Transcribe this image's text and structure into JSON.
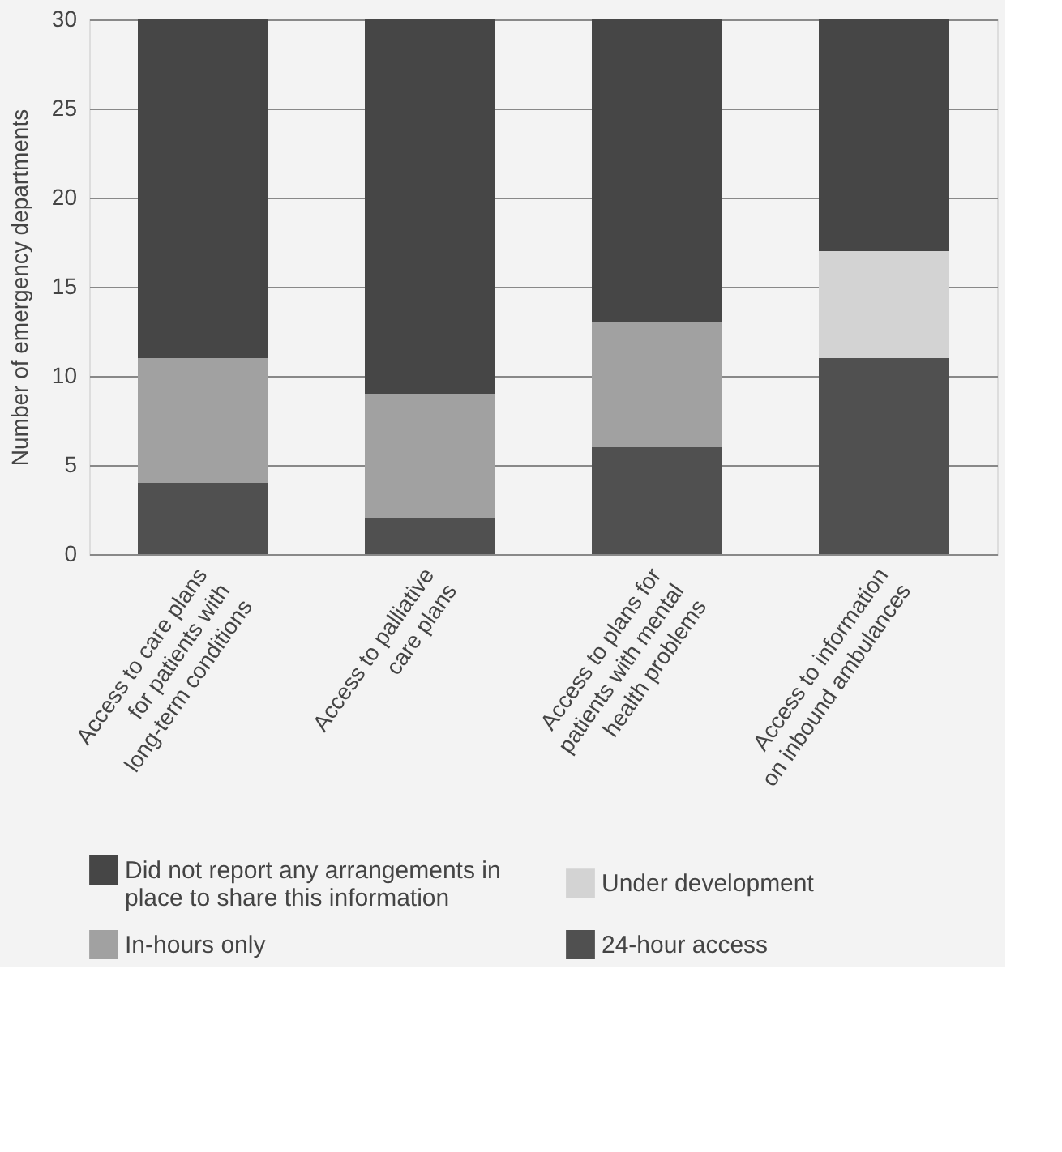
{
  "chart_data": {
    "type": "bar",
    "stacked": true,
    "ylabel": "Number of emergency departments",
    "categories": [
      "Access to care plans for patients with long-term conditions",
      "Access to palliative care plans",
      "Access to plans for patients with mental health problems",
      "Access to information on inbound ambulances"
    ],
    "series": [
      {
        "name": "24-hour access",
        "color": "#505050",
        "values": [
          4,
          2,
          6,
          11
        ]
      },
      {
        "name": "In-hours only",
        "color": "#a1a1a1",
        "values": [
          7,
          7,
          7,
          0
        ]
      },
      {
        "name": "Under development",
        "color": "#d3d3d3",
        "values": [
          0,
          0,
          0,
          6
        ]
      },
      {
        "name": "Did not report any arrangements in place to share this information",
        "color": "#464646",
        "values": [
          19,
          21,
          17,
          13
        ]
      }
    ],
    "ylim": [
      0,
      30
    ],
    "yticks": [
      0,
      5,
      10,
      15,
      20,
      25,
      30
    ],
    "grid": "y",
    "legend": "bottom"
  }
}
